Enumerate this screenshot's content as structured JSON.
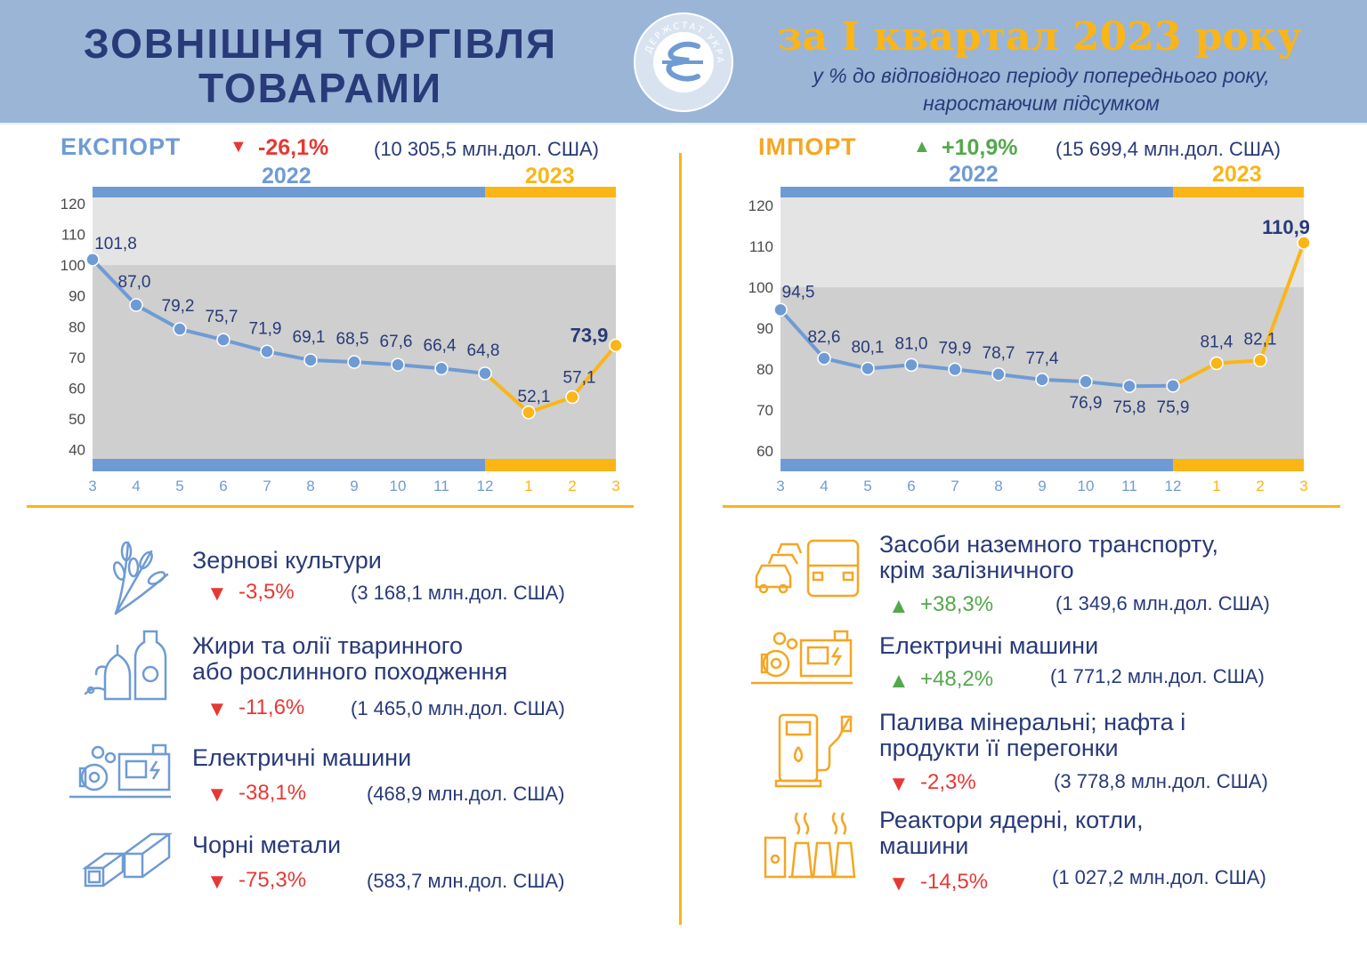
{
  "header": {
    "title_line1": "ЗОВНІШНЯ ТОРГІВЛЯ",
    "title_line2": "ТОВАРАМИ",
    "logo_icon": "derzhstat-logo-icon",
    "logo_text": "ДЕРЖСТАТ УКРАЇНИ",
    "period": "за І квартал 2023 року",
    "subtitle_line1": "у % до відповідного періоду попереднього року,",
    "subtitle_line2": "наростаючим підсумком"
  },
  "colors": {
    "blue": "#6f9bd4",
    "orange": "#fbb515",
    "navy": "#283a78",
    "red": "#e53935",
    "green": "#53a84b",
    "band_light": "#e4e4e4",
    "band_dark": "#cfcfcf",
    "export_title": "#6f9bd4",
    "import_title": "#f5a623"
  },
  "export": {
    "title": "ЕКСПОРТ",
    "change": "-26,1%",
    "direction": "down",
    "amount": "(10 305,5 млн.дол. США)",
    "year_2022": "2022",
    "year_2023": "2023"
  },
  "import": {
    "title": "ІМПОРТ",
    "change": "+10,9%",
    "direction": "up",
    "amount": "(15 699,4 млн.дол. США)",
    "year_2022": "2022",
    "year_2023": "2023"
  },
  "chart_data": [
    {
      "type": "line",
      "title": "ЕКСПОРТ",
      "categories": [
        "3",
        "4",
        "5",
        "6",
        "7",
        "8",
        "9",
        "10",
        "11",
        "12",
        "1",
        "2",
        "3"
      ],
      "series": [
        {
          "values": [
            101.8,
            87.0,
            79.2,
            75.7,
            71.9,
            69.1,
            68.5,
            67.6,
            66.4,
            64.8,
            52.1,
            57.1,
            73.9
          ]
        }
      ],
      "data_labels": [
        "101,8",
        "87,0",
        "79,2",
        "75,7",
        "71,9",
        "69,1",
        "68,5",
        "67,6",
        "66,4",
        "64,8",
        "52,1",
        "57,1",
        "73,9"
      ],
      "year_groups": [
        {
          "label": "2022",
          "from": 0,
          "to": 9,
          "color": "#6f9bd4"
        },
        {
          "label": "2023",
          "from": 9,
          "to": 12,
          "color": "#fbb515"
        }
      ],
      "ylim": [
        37,
        122
      ],
      "yticks": [
        40,
        50,
        60,
        70,
        80,
        90,
        100,
        110,
        120
      ],
      "light_band_from": 100,
      "grid": false,
      "legend": "none"
    },
    {
      "type": "line",
      "title": "ІМПОРТ",
      "categories": [
        "3",
        "4",
        "5",
        "6",
        "7",
        "8",
        "9",
        "10",
        "11",
        "12",
        "1",
        "2",
        "3"
      ],
      "series": [
        {
          "values": [
            94.5,
            82.6,
            80.1,
            81.0,
            79.9,
            78.7,
            77.4,
            76.9,
            75.8,
            75.9,
            81.4,
            82.1,
            110.9
          ]
        }
      ],
      "data_labels": [
        "94,5",
        "82,6",
        "80,1",
        "81,0",
        "79,9",
        "78,7",
        "77,4",
        "76,9",
        "75,8",
        "75,9",
        "81,4",
        "82,1",
        "110,9"
      ],
      "year_groups": [
        {
          "label": "2022",
          "from": 0,
          "to": 9,
          "color": "#6f9bd4"
        },
        {
          "label": "2023",
          "from": 9,
          "to": 12,
          "color": "#fbb515"
        }
      ],
      "ylim": [
        58,
        122
      ],
      "yticks": [
        60,
        70,
        80,
        90,
        100,
        110,
        120
      ],
      "light_band_from": 100,
      "grid": false,
      "legend": "none"
    }
  ],
  "export_items": [
    {
      "icon": "wheat-icon",
      "name_line1": "Зернові культури",
      "name_line2": "",
      "direction": "down",
      "change": "-3,5%",
      "amount": "(3 168,1 млн.дол. США)"
    },
    {
      "icon": "oil-bottles-icon",
      "name_line1": "Жири та олії тваринного",
      "name_line2": "або рослинного походження",
      "direction": "down",
      "change": "-11,6%",
      "amount": "(1 465,0 млн.дол. США)"
    },
    {
      "icon": "electric-machine-icon",
      "name_line1": "Електричні машини",
      "name_line2": "",
      "direction": "down",
      "change": "-38,1%",
      "amount": "(468,9 млн.дол. США)"
    },
    {
      "icon": "metal-beams-icon",
      "name_line1": "Чорні метали",
      "name_line2": "",
      "direction": "down",
      "change": "-75,3%",
      "amount": "(583,7 млн.дол. США)"
    }
  ],
  "import_items": [
    {
      "icon": "vehicles-icon",
      "name_line1": "Засоби наземного транспорту,",
      "name_line2": "крім залізничного",
      "direction": "up",
      "change": "+38,3%",
      "amount": "(1 349,6  млн.дол. США)"
    },
    {
      "icon": "electric-machine-icon",
      "name_line1": "Електричні машини",
      "name_line2": "",
      "direction": "up",
      "change": "+48,2%",
      "amount": "(1 771,2 млн.дол. США)"
    },
    {
      "icon": "fuel-pump-icon",
      "name_line1": "Палива мінеральні; нафта і",
      "name_line2": "продукти її перегонки",
      "direction": "down",
      "change": "-2,3%",
      "amount": "(3 778,8 млн.дол. США)"
    },
    {
      "icon": "power-plant-icon",
      "name_line1": "Реактори ядерні, котли,",
      "name_line2": "машини",
      "direction": "down",
      "change": "-14,5%",
      "amount": "(1 027,2 млн.дол. США)"
    }
  ]
}
